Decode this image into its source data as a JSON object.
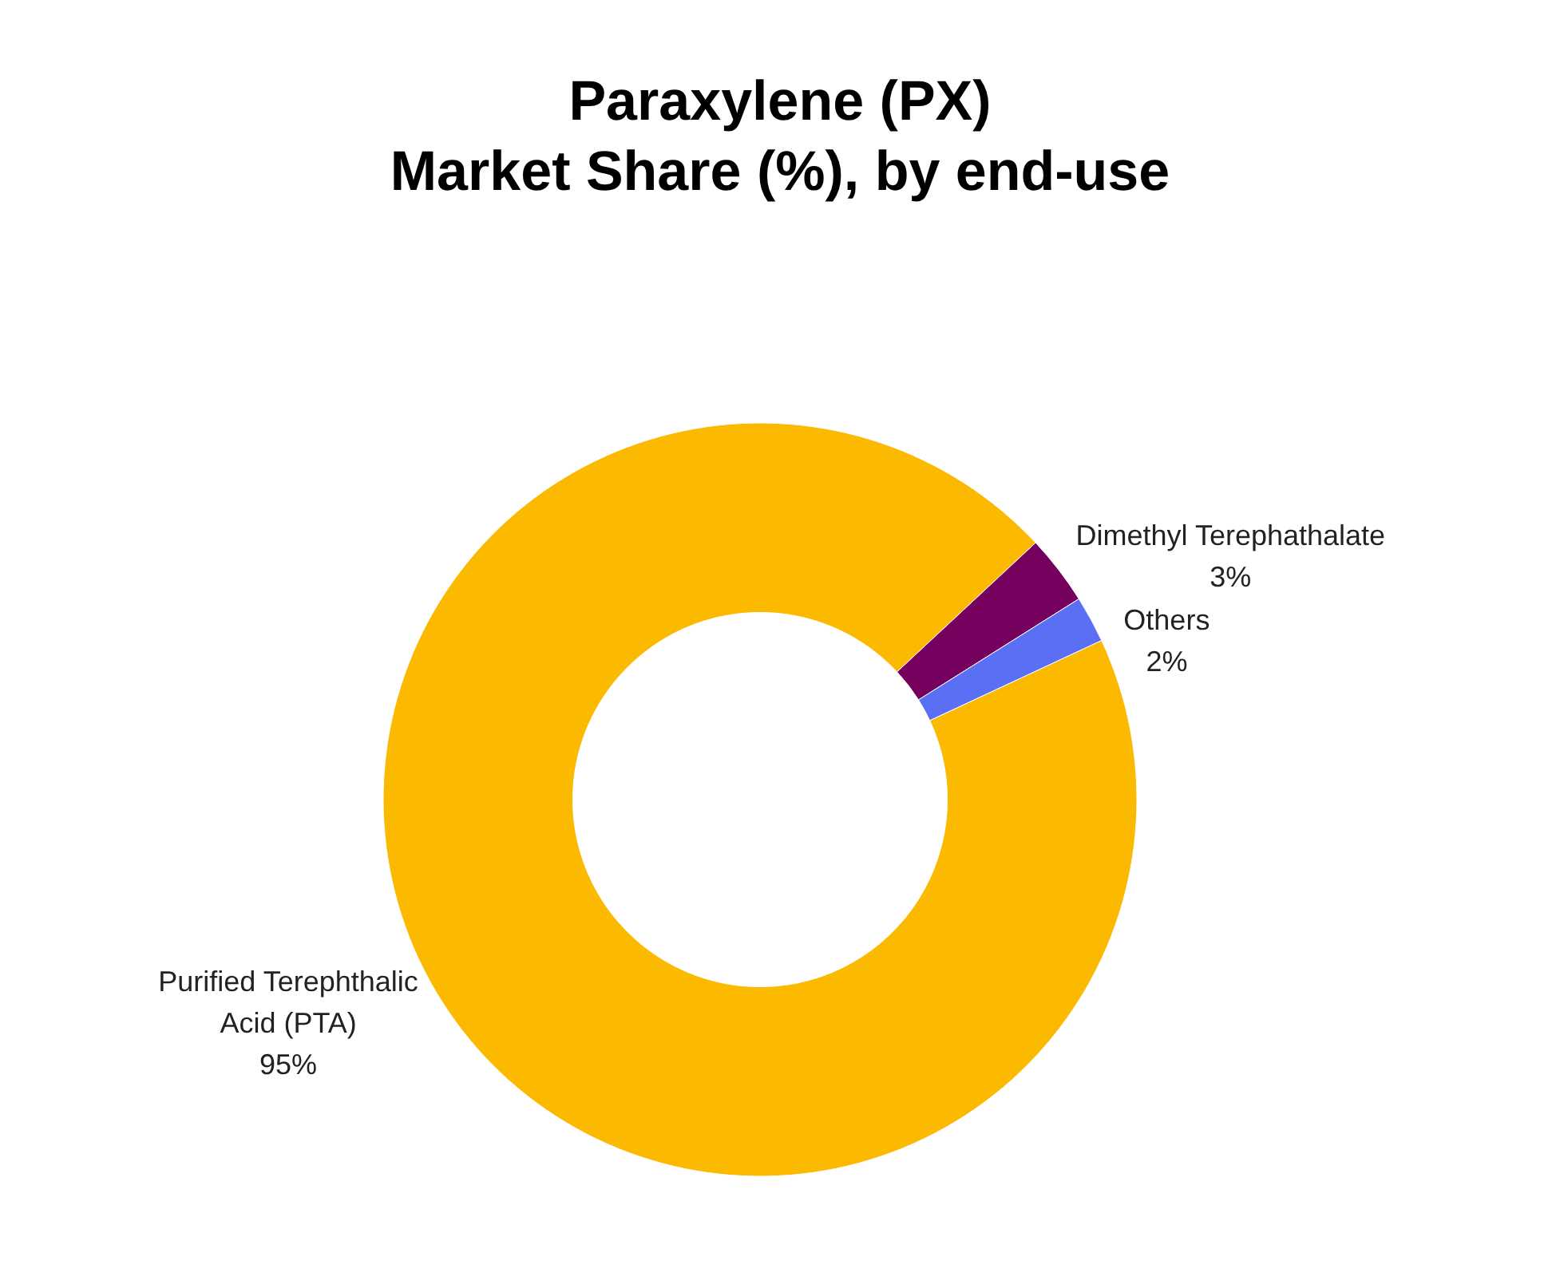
{
  "chart_data": {
    "type": "donut",
    "title": "Paraxylene (PX)\nMarket Share (%), by end-use",
    "categories": [
      "Purified Terephthalic Acid (PTA)",
      "Dimethyl Terephathalate",
      "Others"
    ],
    "values": [
      95,
      3,
      2
    ],
    "colors": [
      "#fbb900",
      "#75005e",
      "#5b6ff5"
    ],
    "value_labels": [
      "95%",
      "3%",
      "2%"
    ]
  }
}
